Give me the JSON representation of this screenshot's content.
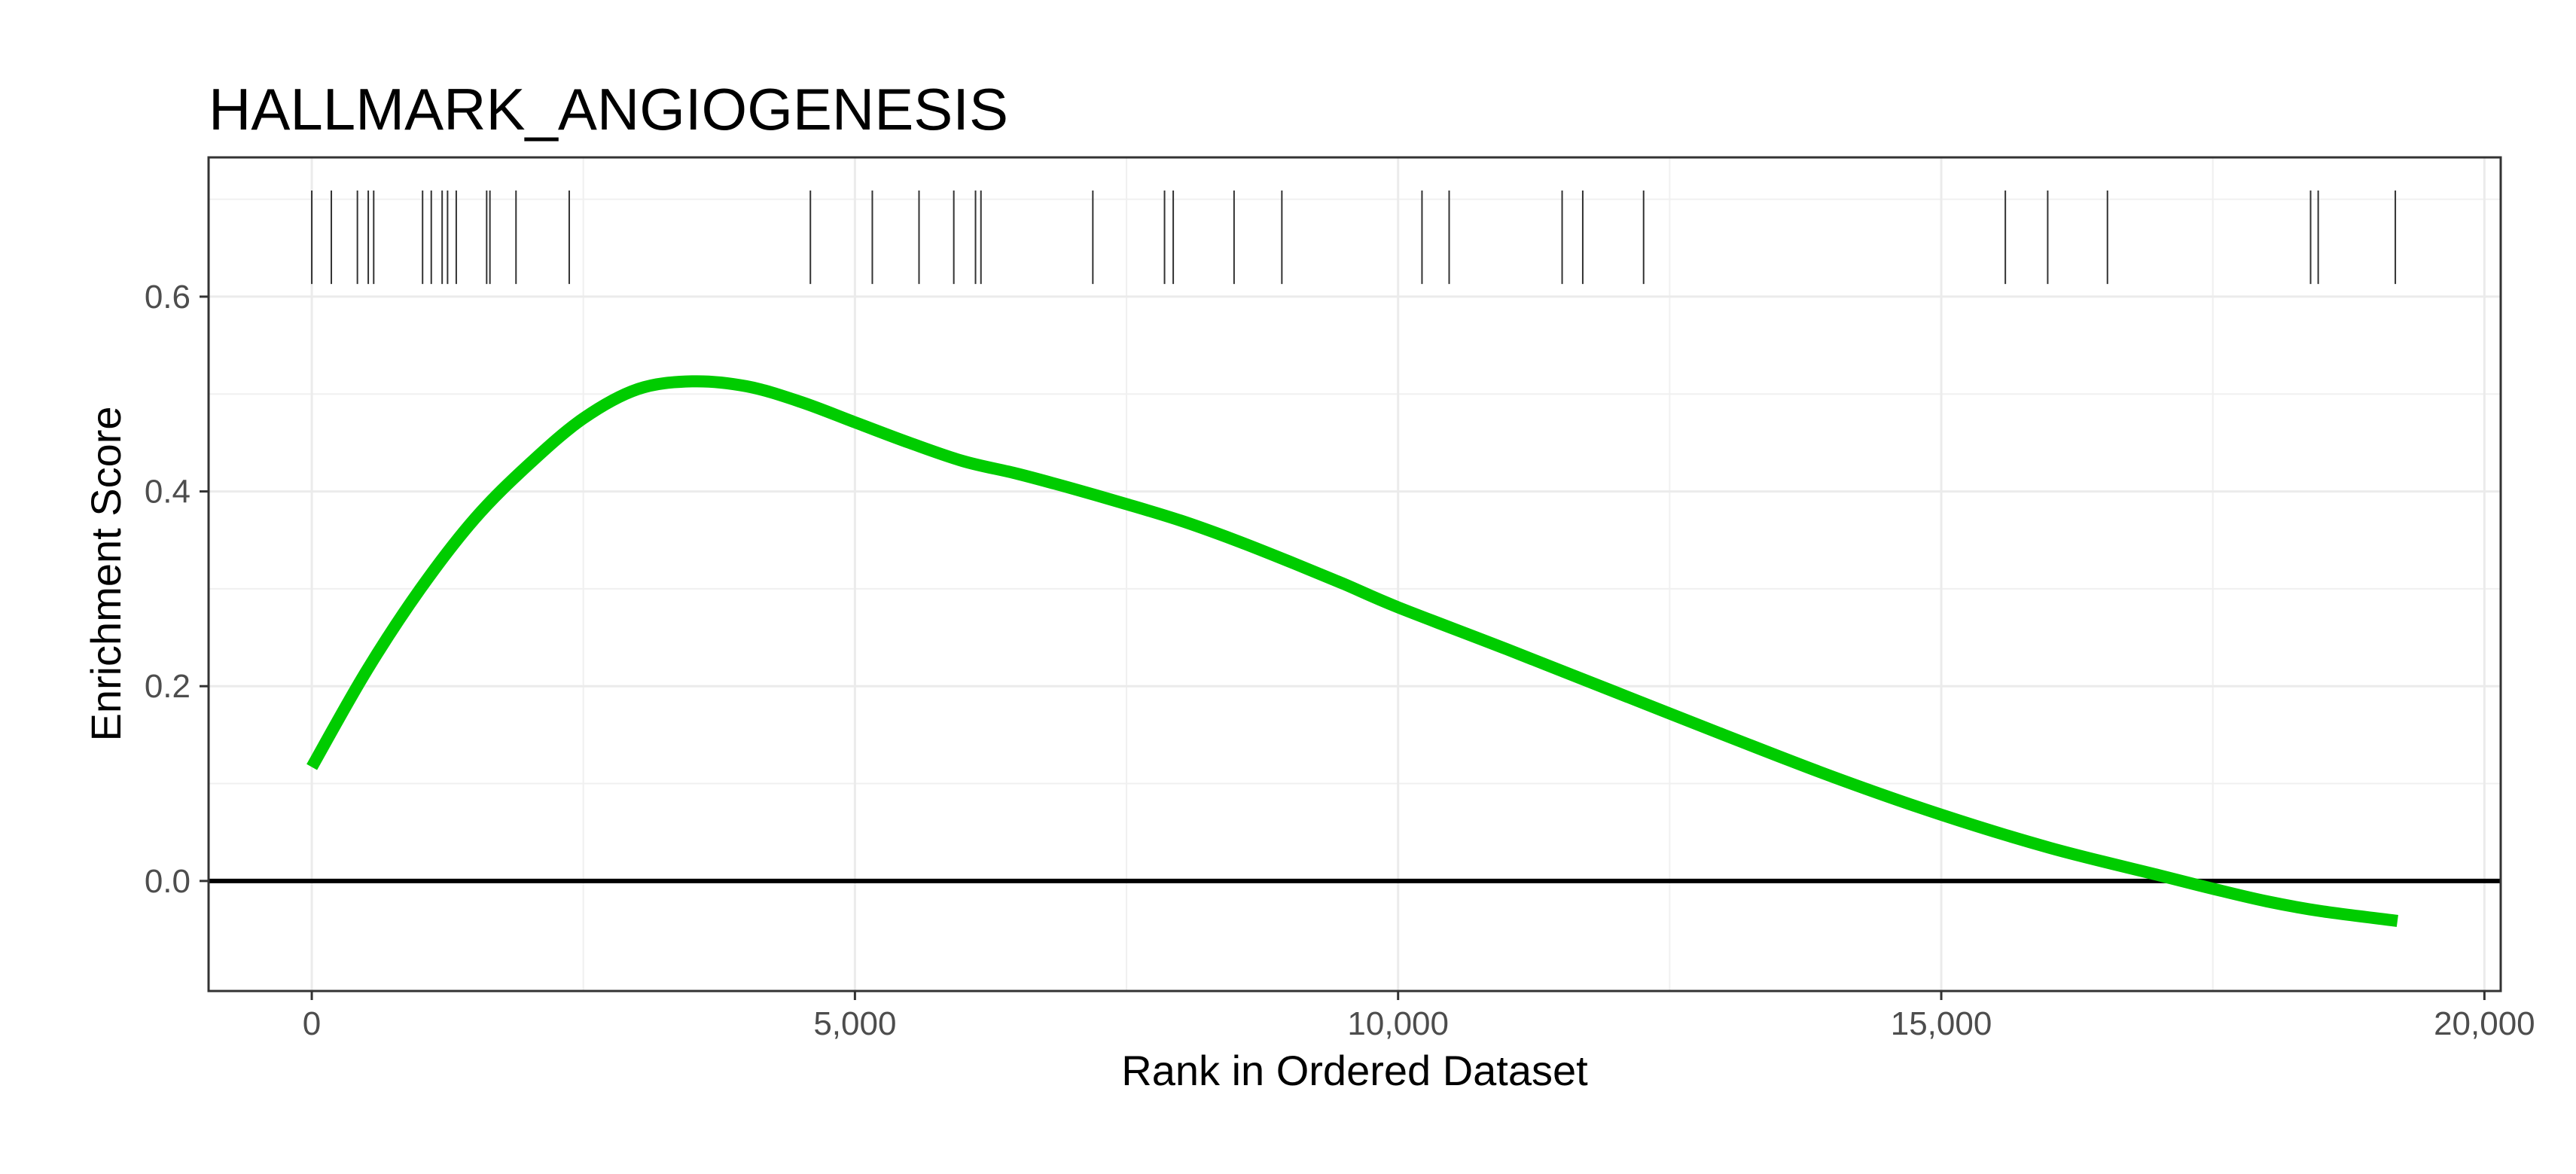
{
  "chart_data": {
    "type": "line",
    "title": "HALLMARK_ANGIOGENESIS",
    "xlabel": "Rank in Ordered Dataset",
    "ylabel": "Enrichment Score",
    "xlim": [
      -950,
      20150
    ],
    "ylim": [
      -0.113,
      0.743
    ],
    "x_ticks": [
      0,
      5000,
      10000,
      15000,
      20000
    ],
    "x_tick_labels": [
      "0",
      "5,000",
      "10,000",
      "15,000",
      "20,000"
    ],
    "y_ticks": [
      0.0,
      0.2,
      0.4,
      0.6
    ],
    "y_tick_labels": [
      "0.0",
      "0.2",
      "0.4",
      "0.6"
    ],
    "grid": true,
    "reference_line": {
      "y": 0,
      "color": "#000000"
    },
    "series": [
      {
        "color": "#00cc00",
        "x": [
          0,
          500,
          1000,
          1500,
          2000,
          2500,
          3000,
          3500,
          4000,
          4500,
          5000,
          5500,
          6000,
          6500,
          7000,
          7500,
          8000,
          8500,
          9000,
          9500,
          10000,
          11000,
          12000,
          13000,
          14000,
          15000,
          16000,
          17000,
          17500,
          18000,
          18500,
          19200
        ],
        "y": [
          0.117,
          0.215,
          0.3,
          0.372,
          0.428,
          0.475,
          0.505,
          0.513,
          0.508,
          0.492,
          0.471,
          0.45,
          0.431,
          0.418,
          0.403,
          0.387,
          0.37,
          0.35,
          0.328,
          0.305,
          0.281,
          0.238,
          0.194,
          0.15,
          0.107,
          0.068,
          0.034,
          0.006,
          -0.008,
          -0.021,
          -0.031,
          -0.041
        ]
      }
    ],
    "gene_hits": {
      "y_range": [
        0.613,
        0.709
      ],
      "color": "#333333",
      "positions": [
        0,
        180,
        420,
        520,
        570,
        1020,
        1100,
        1200,
        1250,
        1330,
        1610,
        1640,
        1880,
        2370,
        4590,
        5160,
        5590,
        5910,
        6110,
        6160,
        7190,
        7850,
        7930,
        8490,
        8930,
        10220,
        10470,
        11510,
        11700,
        12260,
        15590,
        15980,
        16530,
        18400,
        18470,
        19180
      ]
    }
  }
}
